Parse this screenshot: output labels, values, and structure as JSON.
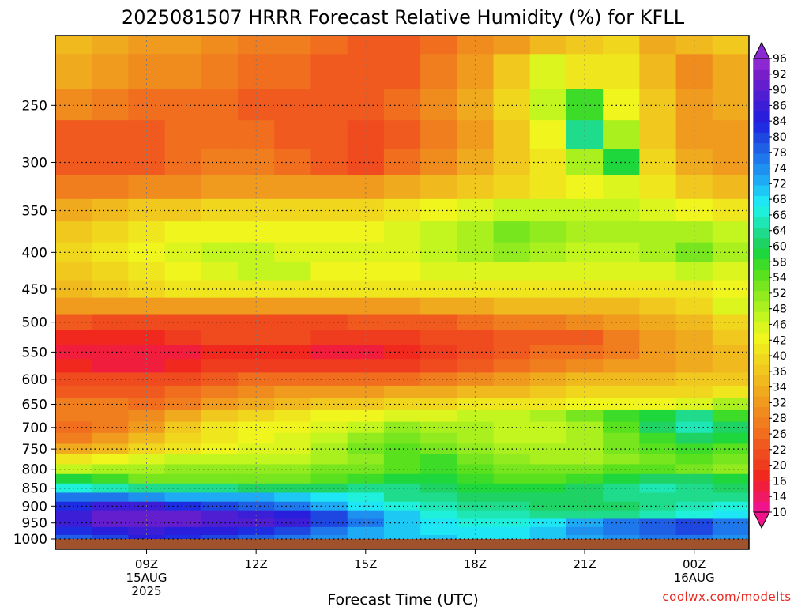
{
  "title": "2025081507 HRRR Forecast Relative Humidity (%) for KFLL",
  "credit": "coolwx.com/modelts",
  "colors": {
    "ground": "#A0522D",
    "credit": "#e8281e",
    "frame": "#000000"
  },
  "chart_data": {
    "type": "heatmap",
    "title": "2025081507 HRRR Forecast Relative Humidity (%) for KFLL",
    "xlabel": "Forecast Time (UTC)",
    "ylabel": "",
    "x": [
      "07Z",
      "08Z",
      "09Z",
      "10Z",
      "11Z",
      "12Z",
      "13Z",
      "14Z",
      "15Z",
      "16Z",
      "17Z",
      "18Z",
      "19Z",
      "20Z",
      "21Z",
      "22Z",
      "23Z",
      "00Z",
      "01Z"
    ],
    "y": [
      200,
      225,
      250,
      275,
      300,
      325,
      350,
      375,
      400,
      425,
      450,
      475,
      500,
      525,
      550,
      575,
      600,
      625,
      650,
      675,
      700,
      725,
      750,
      775,
      800,
      825,
      850,
      875,
      900,
      925,
      950,
      975,
      1000
    ],
    "xlim": [
      "07Z",
      "01Z"
    ],
    "ylim": [
      1000,
      200
    ],
    "y_scale": "log-pressure",
    "grid": true,
    "x_ticks": [
      {
        "x": "09Z",
        "label": "09Z",
        "date": "15AUG",
        "year": "2025"
      },
      {
        "x": "12Z",
        "label": "12Z"
      },
      {
        "x": "15Z",
        "label": "15Z"
      },
      {
        "x": "18Z",
        "label": "18Z"
      },
      {
        "x": "21Z",
        "label": "21Z"
      },
      {
        "x": "00Z",
        "label": "00Z",
        "date": "16AUG"
      }
    ],
    "y_ticks": [
      {
        "p": 250,
        "label": "250"
      },
      {
        "p": 300,
        "label": "300"
      },
      {
        "p": 350,
        "label": "350"
      },
      {
        "p": 400,
        "label": "400"
      },
      {
        "p": 450,
        "label": "450"
      },
      {
        "p": 500,
        "label": "500"
      },
      {
        "p": 550,
        "label": "550"
      },
      {
        "p": 600,
        "label": "600"
      },
      {
        "p": 650,
        "label": "650"
      },
      {
        "p": 700,
        "label": "700"
      },
      {
        "p": 750,
        "label": "750"
      },
      {
        "p": 800,
        "label": "800"
      },
      {
        "p": 850,
        "label": "850"
      },
      {
        "p": 900,
        "label": "900"
      },
      {
        "p": 950,
        "label": "950"
      },
      {
        "p": 1000,
        "label": "1000"
      }
    ],
    "colorbar": {
      "levels": [
        10,
        12,
        14,
        16,
        18,
        20,
        22,
        24,
        26,
        28,
        30,
        32,
        34,
        36,
        38,
        40,
        42,
        44,
        46,
        48,
        50,
        52,
        54,
        56,
        58,
        60,
        62,
        64,
        66,
        68,
        70,
        72,
        74,
        76,
        78,
        80,
        82,
        84,
        86,
        88,
        90,
        92,
        94,
        96
      ],
      "labels": [
        "10",
        "14",
        "16",
        "20",
        "22",
        "26",
        "28",
        "32",
        "34",
        "36",
        "40",
        "42",
        "46",
        "48",
        "52",
        "54",
        "58",
        "60",
        "64",
        "66",
        "68",
        "72",
        "74",
        "78",
        "80",
        "84",
        "86",
        "90",
        "92",
        "96"
      ],
      "label_levels": [
        10,
        14,
        16,
        20,
        22,
        26,
        28,
        32,
        34,
        36,
        40,
        42,
        46,
        48,
        52,
        54,
        58,
        60,
        64,
        66,
        68,
        72,
        74,
        78,
        80,
        84,
        86,
        90,
        92,
        96
      ],
      "colors": [
        "#f0148c",
        "#f01a64",
        "#f01e3c",
        "#f0281e",
        "#f03c1e",
        "#f04b1e",
        "#f05a1e",
        "#f06e1e",
        "#f07d1e",
        "#f08c1e",
        "#f09b1e",
        "#f0aa1e",
        "#f0b91e",
        "#f0c81e",
        "#f0d71e",
        "#f0e61e",
        "#f0f51e",
        "#dcf51e",
        "#c3f51e",
        "#aaf01e",
        "#91eb1e",
        "#78e61e",
        "#5ae11e",
        "#3cdc28",
        "#1ed73c",
        "#1ed264",
        "#1edc8c",
        "#1ee6b4",
        "#1ef0dc",
        "#1ee6f5",
        "#1ec8f5",
        "#1eaaf5",
        "#1e91f0",
        "#1e78eb",
        "#1e5fe6",
        "#1e46e1",
        "#1e2de1",
        "#281edc",
        "#3c1ed7",
        "#501ed2",
        "#641ecd",
        "#781ec8",
        "#8c28d2"
      ]
    },
    "values": [
      [
        34,
        33,
        30,
        30,
        28,
        26,
        26,
        24,
        22,
        22,
        24,
        28,
        30,
        34,
        36,
        38,
        32,
        34,
        36
      ],
      [
        32,
        31,
        29,
        28,
        26,
        25,
        24,
        23,
        22,
        22,
        26,
        30,
        36,
        44,
        40,
        40,
        34,
        28,
        32
      ],
      [
        28,
        26,
        24,
        24,
        24,
        23,
        22,
        22,
        22,
        24,
        28,
        32,
        38,
        46,
        56,
        42,
        36,
        30,
        32
      ],
      [
        22,
        22,
        23,
        24,
        24,
        24,
        23,
        22,
        21,
        22,
        26,
        30,
        36,
        42,
        62,
        48,
        36,
        30,
        30
      ],
      [
        22,
        22,
        22,
        24,
        26,
        26,
        24,
        22,
        20,
        24,
        28,
        32,
        36,
        40,
        48,
        58,
        38,
        32,
        30
      ],
      [
        26,
        26,
        28,
        28,
        30,
        30,
        30,
        30,
        30,
        32,
        34,
        36,
        38,
        40,
        42,
        44,
        40,
        36,
        34
      ],
      [
        32,
        34,
        36,
        36,
        38,
        38,
        38,
        38,
        38,
        40,
        42,
        44,
        46,
        46,
        46,
        46,
        44,
        42,
        40
      ],
      [
        36,
        38,
        40,
        42,
        42,
        42,
        42,
        42,
        42,
        44,
        46,
        48,
        52,
        50,
        48,
        48,
        48,
        48,
        46
      ],
      [
        38,
        40,
        42,
        44,
        46,
        46,
        44,
        44,
        44,
        44,
        46,
        48,
        50,
        48,
        46,
        46,
        48,
        52,
        48
      ],
      [
        36,
        38,
        40,
        42,
        44,
        46,
        46,
        42,
        42,
        42,
        44,
        44,
        44,
        44,
        44,
        44,
        44,
        46,
        44
      ],
      [
        34,
        36,
        38,
        40,
        40,
        40,
        40,
        40,
        40,
        40,
        40,
        40,
        40,
        40,
        40,
        40,
        40,
        40,
        42
      ],
      [
        30,
        30,
        30,
        30,
        30,
        30,
        30,
        30,
        30,
        30,
        32,
        32,
        34,
        34,
        34,
        34,
        36,
        38,
        44
      ],
      [
        22,
        20,
        20,
        20,
        20,
        20,
        20,
        20,
        22,
        22,
        22,
        24,
        26,
        26,
        28,
        30,
        32,
        34,
        38
      ],
      [
        16,
        16,
        16,
        18,
        20,
        20,
        20,
        18,
        18,
        18,
        20,
        20,
        22,
        22,
        22,
        26,
        30,
        32,
        36
      ],
      [
        14,
        14,
        14,
        14,
        16,
        16,
        16,
        14,
        14,
        16,
        18,
        20,
        22,
        24,
        24,
        26,
        30,
        32,
        34
      ],
      [
        16,
        14,
        14,
        16,
        18,
        18,
        18,
        18,
        18,
        18,
        20,
        22,
        24,
        26,
        28,
        30,
        30,
        32,
        34
      ],
      [
        20,
        20,
        20,
        20,
        22,
        24,
        24,
        24,
        24,
        24,
        26,
        28,
        30,
        32,
        34,
        34,
        34,
        36,
        36
      ],
      [
        22,
        22,
        22,
        24,
        26,
        28,
        30,
        30,
        30,
        32,
        32,
        34,
        34,
        36,
        38,
        38,
        38,
        38,
        40
      ],
      [
        26,
        26,
        24,
        26,
        30,
        32,
        34,
        36,
        36,
        38,
        38,
        40,
        40,
        40,
        42,
        42,
        42,
        44,
        48
      ],
      [
        26,
        26,
        28,
        32,
        36,
        38,
        40,
        42,
        42,
        44,
        44,
        46,
        46,
        48,
        52,
        56,
        58,
        62,
        56
      ],
      [
        24,
        26,
        30,
        36,
        40,
        42,
        42,
        44,
        46,
        50,
        48,
        48,
        46,
        46,
        48,
        54,
        60,
        64,
        60
      ],
      [
        26,
        30,
        34,
        38,
        40,
        42,
        44,
        46,
        50,
        52,
        50,
        48,
        46,
        46,
        48,
        52,
        56,
        60,
        58
      ],
      [
        32,
        34,
        38,
        40,
        42,
        44,
        44,
        48,
        52,
        54,
        52,
        50,
        48,
        48,
        48,
        52,
        54,
        56,
        54
      ],
      [
        40,
        42,
        44,
        46,
        46,
        46,
        46,
        48,
        50,
        54,
        56,
        52,
        50,
        48,
        48,
        50,
        52,
        54,
        52
      ],
      [
        46,
        48,
        48,
        50,
        50,
        50,
        50,
        52,
        52,
        54,
        56,
        54,
        52,
        52,
        52,
        54,
        54,
        52,
        50
      ],
      [
        58,
        56,
        52,
        52,
        52,
        52,
        52,
        54,
        56,
        58,
        58,
        56,
        54,
        54,
        56,
        58,
        60,
        60,
        58
      ],
      [
        66,
        64,
        62,
        62,
        62,
        60,
        60,
        60,
        62,
        62,
        60,
        58,
        58,
        58,
        60,
        62,
        64,
        62,
        60
      ],
      [
        76,
        76,
        74,
        72,
        72,
        72,
        70,
        68,
        66,
        62,
        62,
        60,
        60,
        60,
        60,
        62,
        62,
        62,
        62
      ],
      [
        82,
        86,
        86,
        82,
        80,
        78,
        76,
        72,
        68,
        66,
        64,
        62,
        62,
        60,
        60,
        60,
        62,
        64,
        66
      ],
      [
        86,
        90,
        90,
        90,
        88,
        86,
        84,
        80,
        74,
        70,
        66,
        64,
        64,
        62,
        62,
        62,
        64,
        66,
        68
      ],
      [
        86,
        90,
        90,
        90,
        88,
        88,
        86,
        80,
        76,
        70,
        68,
        66,
        66,
        68,
        72,
        76,
        78,
        80,
        76
      ],
      [
        82,
        84,
        86,
        84,
        84,
        82,
        80,
        76,
        72,
        70,
        68,
        68,
        68,
        70,
        74,
        76,
        78,
        80,
        76
      ],
      [
        78,
        80,
        84,
        82,
        80,
        78,
        76,
        74,
        72,
        70,
        70,
        68,
        68,
        70,
        72,
        74,
        76,
        76,
        74
      ]
    ]
  }
}
